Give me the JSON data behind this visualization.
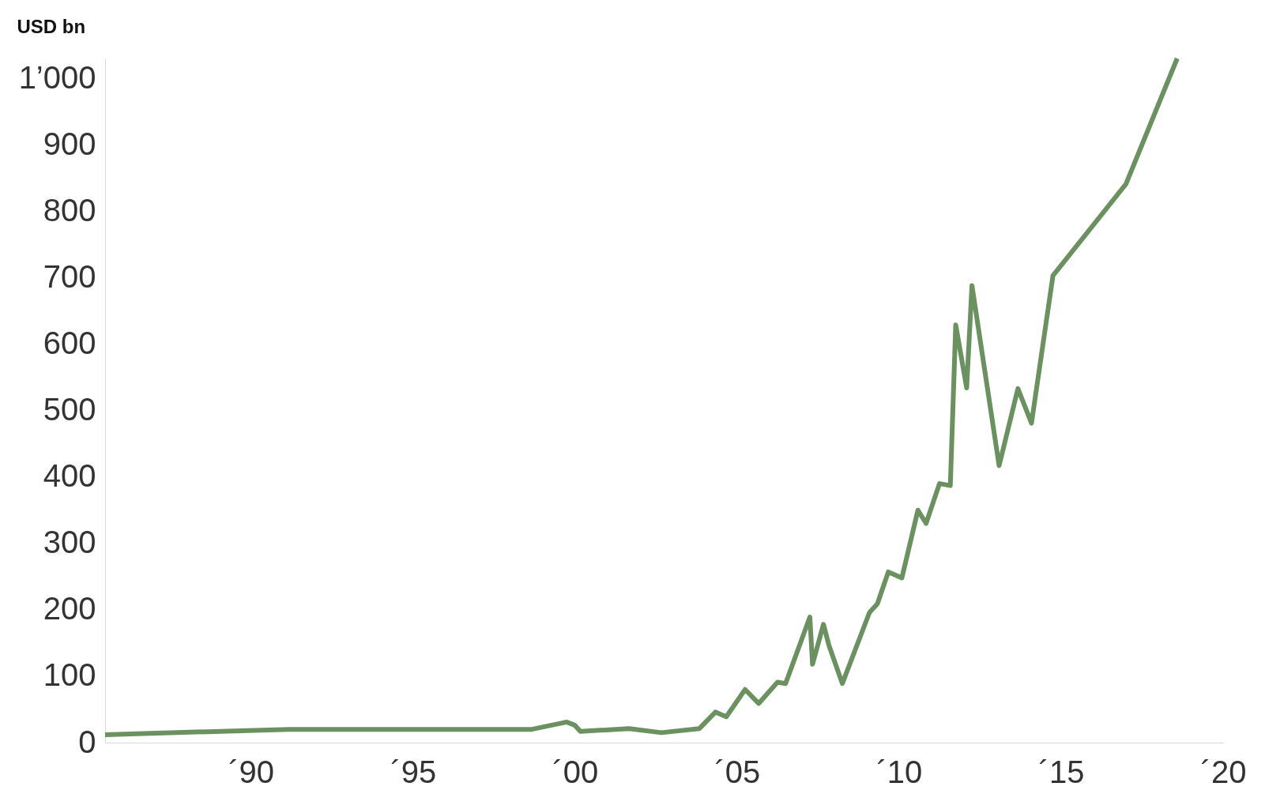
{
  "chart_data": {
    "type": "line",
    "ylabel": "USD bn",
    "x": [
      "1985-07",
      "1991-03",
      "1998-09",
      "1999-10",
      "2000-01",
      "2000-03",
      "2001-09",
      "2002-09",
      "2003-11",
      "2004-05",
      "2004-09",
      "2005-04",
      "2005-09",
      "2006-04",
      "2006-07",
      "2007-04",
      "2007-05",
      "2007-09",
      "2007-11",
      "2008-04",
      "2009-02",
      "2009-05",
      "2009-09",
      "2010-02",
      "2010-08",
      "2010-11",
      "2011-04",
      "2011-08",
      "2011-10",
      "2012-02",
      "2012-04",
      "2013-02",
      "2013-09",
      "2014-02",
      "2014-10",
      "2017-01",
      "2018-08"
    ],
    "series": [
      {
        "color": "#6b9161",
        "values": [
          12,
          20,
          20,
          31,
          26,
          17,
          21,
          15,
          21,
          46,
          39,
          80,
          59,
          91,
          89,
          189,
          118,
          178,
          147,
          89,
          196,
          209,
          257,
          248,
          350,
          330,
          390,
          387,
          629,
          534,
          688,
          417,
          533,
          481,
          703,
          841,
          1030
        ]
      }
    ],
    "xlim": [
      "1985-07",
      "2020"
    ],
    "ylim": [
      0,
      1030
    ],
    "xticks": [
      {
        "value": "1990",
        "label": "´90"
      },
      {
        "value": "1995",
        "label": "´95"
      },
      {
        "value": "2000",
        "label": "´00"
      },
      {
        "value": "2005",
        "label": "´05"
      },
      {
        "value": "2010",
        "label": "´10"
      },
      {
        "value": "2015",
        "label": "´15"
      },
      {
        "value": "2020",
        "label": "´20"
      }
    ],
    "yticks": [
      0,
      100,
      200,
      300,
      400,
      500,
      600,
      700,
      800,
      900,
      {
        "value": 1000,
        "label": "1’000"
      }
    ],
    "grid": false,
    "legend": false,
    "line_style": "solid",
    "marker": "none"
  }
}
